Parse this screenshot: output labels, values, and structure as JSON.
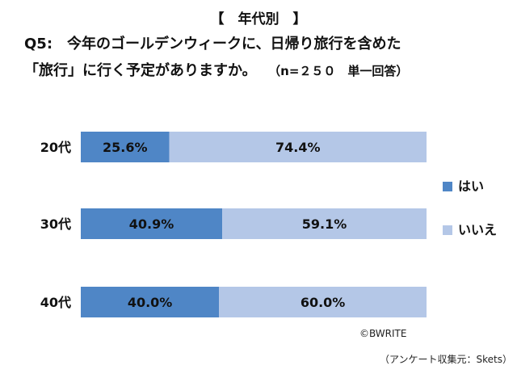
{
  "heading": "【　年代別　】",
  "question": {
    "line1": "Q5:　今年のゴールデンウィークに、日帰り旅行を含めた",
    "line2": "「旅行」に行く予定がありますか。",
    "note": "（n=２５０　単一回答）"
  },
  "chart_data": {
    "type": "bar",
    "orientation": "horizontal",
    "stacked": true,
    "percent": true,
    "categories": [
      "20代",
      "30代",
      "40代"
    ],
    "series": [
      {
        "name": "はい",
        "values": [
          25.6,
          40.9,
          40.0
        ],
        "labels": [
          "25.6%",
          "40.9%",
          "40.0%"
        ],
        "color": "#4f86c6"
      },
      {
        "name": "いいえ",
        "values": [
          74.4,
          59.1,
          60.0
        ],
        "labels": [
          "74.4%",
          "59.1%",
          "60.0%"
        ],
        "color": "#b4c7e7"
      }
    ],
    "xlim": [
      0,
      100
    ],
    "legend": "right",
    "grid": false
  },
  "footer": {
    "copyright": "©BWRITE",
    "source": "（アンケート収集元：Skets）"
  }
}
